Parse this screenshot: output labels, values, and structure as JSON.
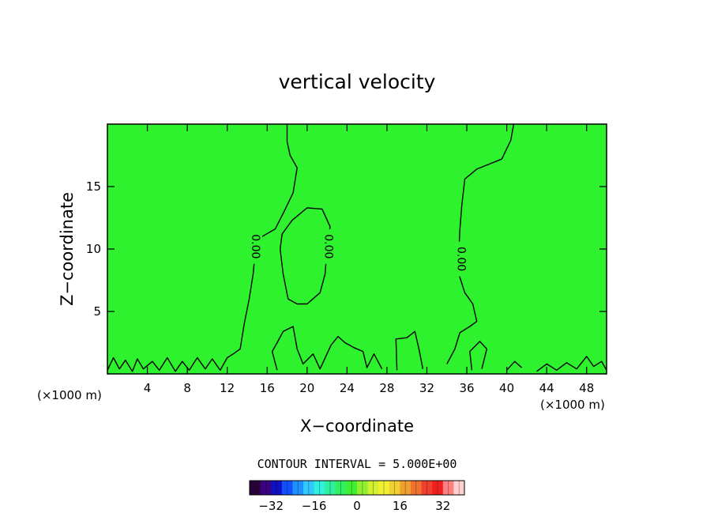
{
  "chart_data": {
    "type": "heatmap",
    "title": "vertical velocity",
    "xlabel": "X−coordinate",
    "ylabel": "Z−coordinate",
    "x_unit_left": "(×1000 m)",
    "x_unit_right": "(×1000 m)",
    "xlim": [
      0,
      50
    ],
    "ylim": [
      0,
      20
    ],
    "x_ticks": [
      4,
      8,
      12,
      16,
      20,
      24,
      28,
      32,
      36,
      40,
      44,
      48
    ],
    "y_ticks": [
      5,
      10,
      15
    ],
    "field_color": "#2ef22e",
    "contour_color": "#000000",
    "contour_labels": [
      {
        "text": "0.00",
        "x": 14.8,
        "y": 10.2
      },
      {
        "text": "0.00",
        "x": 22.1,
        "y": 10.2
      },
      {
        "text": "0.00",
        "x": 35.4,
        "y": 9.2
      }
    ],
    "contours": [
      [
        [
          0,
          0.3
        ],
        [
          0.6,
          1.3
        ],
        [
          1.2,
          0.4
        ],
        [
          1.8,
          1.1
        ],
        [
          2.5,
          0.2
        ],
        [
          3,
          1.2
        ],
        [
          3.6,
          0.4
        ],
        [
          4.5,
          1.0
        ],
        [
          5.2,
          0.3
        ],
        [
          6,
          1.3
        ],
        [
          6.8,
          0.2
        ],
        [
          7.5,
          1.0
        ],
        [
          8.2,
          0.3
        ],
        [
          9,
          1.3
        ],
        [
          9.8,
          0.4
        ],
        [
          10.5,
          1.2
        ],
        [
          11.3,
          0.3
        ],
        [
          12,
          1.3
        ],
        [
          12.6,
          1.6
        ],
        [
          13.3,
          2.0
        ],
        [
          13.7,
          4.0
        ],
        [
          14.2,
          6.0
        ],
        [
          14.6,
          8.0
        ],
        [
          14.9,
          10.5
        ],
        [
          15.5,
          11.0
        ],
        [
          16.8,
          11.6
        ],
        [
          17.7,
          13.0
        ],
        [
          18.6,
          14.5
        ],
        [
          19.0,
          16.5
        ],
        [
          18.3,
          17.5
        ],
        [
          18.0,
          18.6
        ],
        [
          18.0,
          20.0
        ]
      ],
      [
        [
          19.0,
          5.6
        ],
        [
          18.1,
          6.0
        ],
        [
          17.6,
          8.0
        ],
        [
          17.3,
          10.0
        ],
        [
          17.5,
          11.2
        ],
        [
          18.5,
          12.3
        ],
        [
          20.0,
          13.3
        ],
        [
          21.5,
          13.2
        ],
        [
          22.3,
          11.8
        ],
        [
          22.0,
          10.0
        ],
        [
          21.8,
          8.0
        ],
        [
          21.3,
          6.5
        ],
        [
          20.0,
          5.6
        ],
        [
          19.0,
          5.6
        ]
      ],
      [
        [
          17.0,
          0.3
        ],
        [
          16.5,
          1.8
        ],
        [
          17.0,
          2.5
        ],
        [
          17.6,
          3.4
        ],
        [
          18.6,
          3.8
        ],
        [
          19.0,
          2.0
        ],
        [
          19.6,
          0.8
        ],
        [
          20.6,
          1.6
        ],
        [
          21.3,
          0.4
        ],
        [
          22.4,
          2.3
        ],
        [
          23.1,
          3.0
        ],
        [
          23.8,
          2.5
        ],
        [
          24.7,
          2.1
        ],
        [
          25.6,
          1.8
        ],
        [
          26.0,
          0.5
        ],
        [
          26.7,
          1.6
        ],
        [
          27.5,
          0.4
        ]
      ],
      [
        [
          29.0,
          0.3
        ],
        [
          28.9,
          2.8
        ],
        [
          30.0,
          2.9
        ],
        [
          30.8,
          3.4
        ],
        [
          31.2,
          2.0
        ],
        [
          31.6,
          0.4
        ]
      ],
      [
        [
          40.7,
          20.0
        ],
        [
          40.4,
          18.7
        ],
        [
          39.5,
          17.2
        ],
        [
          37.0,
          16.4
        ],
        [
          35.8,
          15.6
        ],
        [
          35.5,
          13.5
        ],
        [
          35.3,
          11.5
        ],
        [
          35.2,
          9.8
        ],
        [
          35.2,
          8.0
        ],
        [
          35.8,
          6.5
        ],
        [
          36.6,
          5.6
        ],
        [
          37.0,
          4.2
        ],
        [
          36.3,
          3.8
        ],
        [
          35.3,
          3.3
        ],
        [
          34.8,
          2.0
        ],
        [
          34.0,
          0.8
        ]
      ],
      [
        [
          36.5,
          0.3
        ],
        [
          36.3,
          1.8
        ],
        [
          37.3,
          2.6
        ],
        [
          38.0,
          2.0
        ],
        [
          37.5,
          0.4
        ]
      ],
      [
        [
          40.0,
          0.3
        ],
        [
          40.8,
          1.0
        ],
        [
          41.5,
          0.5
        ]
      ],
      [
        [
          43.0,
          0.2
        ],
        [
          44.0,
          0.8
        ],
        [
          45.0,
          0.3
        ],
        [
          46.0,
          0.9
        ],
        [
          47.0,
          0.4
        ],
        [
          48.0,
          1.4
        ],
        [
          48.7,
          0.6
        ],
        [
          49.5,
          1.0
        ],
        [
          50.0,
          0.3
        ]
      ]
    ],
    "contour_interval_label": "CONTOUR INTERVAL = 5.000E+00",
    "colorbar": {
      "min": -40,
      "max": 40,
      "ticks": [
        -32,
        -16,
        0,
        16,
        32
      ],
      "colors": [
        "#2a0038",
        "#3a0080",
        "#1010c0",
        "#1050ff",
        "#2090ff",
        "#30c8ff",
        "#30f0e0",
        "#30f0a0",
        "#30f060",
        "#40f030",
        "#90f030",
        "#d0f030",
        "#f0f030",
        "#f0d030",
        "#f0a030",
        "#f07030",
        "#f04030",
        "#f02020",
        "#ff8080",
        "#ffd0d0"
      ]
    }
  }
}
